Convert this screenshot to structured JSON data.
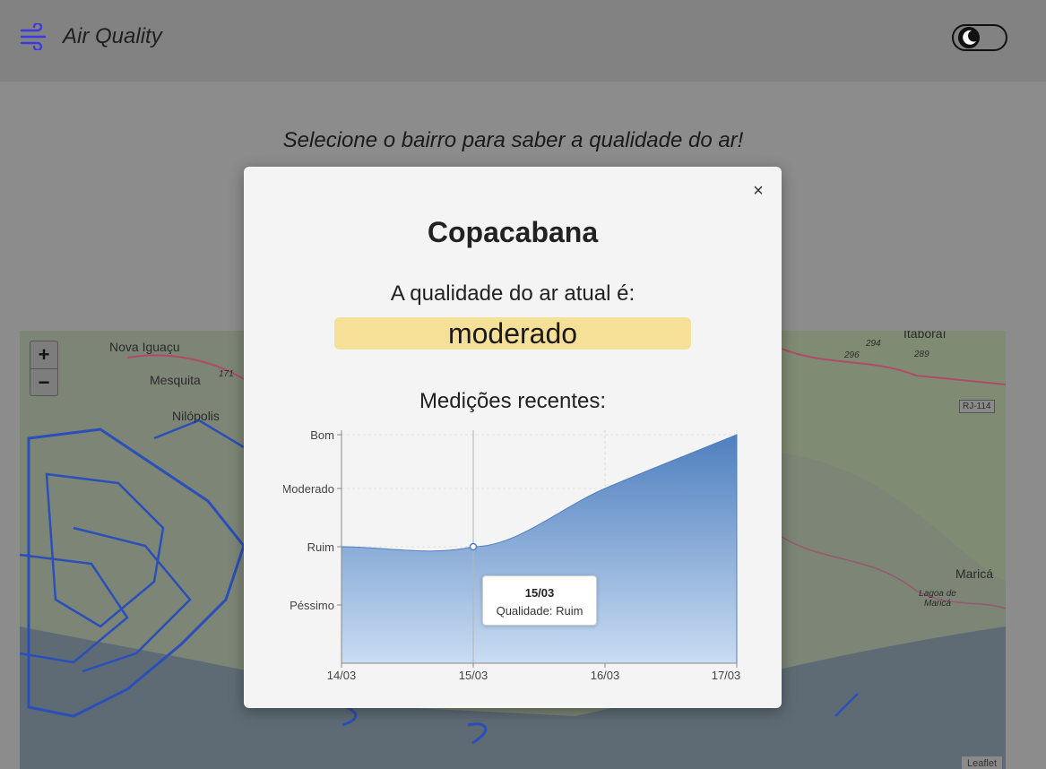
{
  "header": {
    "title": "Air Quality",
    "logo_icon": "wind-icon",
    "theme_toggle_icon": "moon-icon"
  },
  "main": {
    "subtitle": "Selecione o bairro para saber a qualidade do ar!"
  },
  "map": {
    "zoom_in": "+",
    "zoom_out": "−",
    "attribution": "Leaflet",
    "labels": [
      "Nova Iguaçu",
      "Mesquita",
      "Nilópolis",
      "Itaboraí",
      "Maricá",
      "Lagoa de Maricá",
      "RJ-114",
      "296",
      "289",
      "294",
      "171"
    ]
  },
  "modal": {
    "close": "×",
    "title": "Copacabana",
    "quality_label": "A qualidade do ar atual é:",
    "quality_value": "moderado",
    "quality_color": "#f6df97",
    "recent_label": "Medições recentes:"
  },
  "chart_data": {
    "type": "area",
    "categories": [
      "14/03",
      "15/03",
      "16/03",
      "17/03"
    ],
    "levels": [
      "Péssimo",
      "Ruim",
      "Moderado",
      "Bom"
    ],
    "values": [
      2,
      2,
      3,
      4
    ],
    "ylim": [
      1,
      4
    ],
    "grid": true,
    "color": "#4f7fbf",
    "tooltip": {
      "date": "15/03",
      "text": "Qualidade: Ruim"
    }
  }
}
